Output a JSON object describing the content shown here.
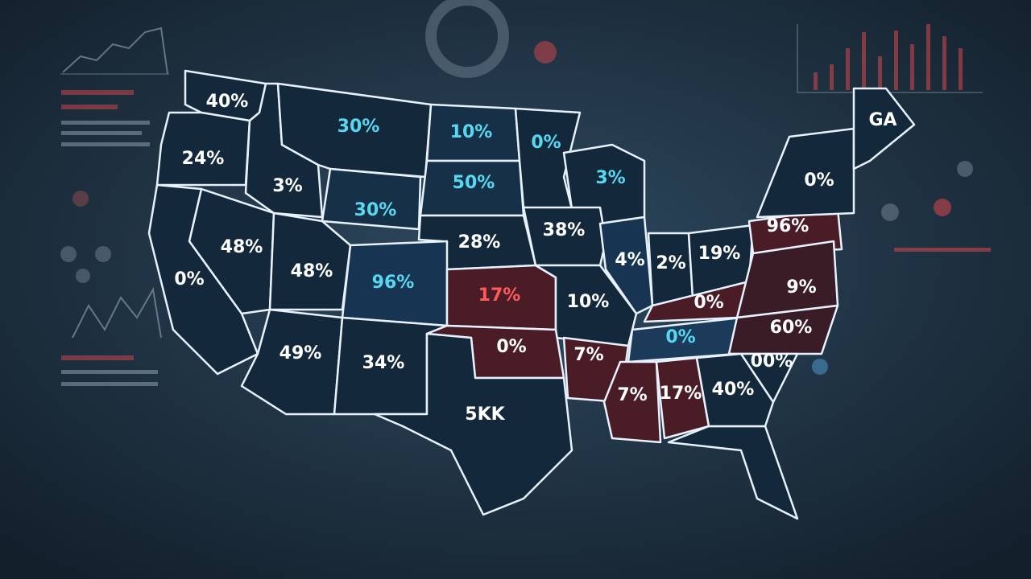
{
  "map": {
    "regions": [
      {
        "label": "40%",
        "fill": "#14283b",
        "text_color": "#ffffff"
      },
      {
        "label": "24%",
        "fill": "#14283b",
        "text_color": "#ffffff"
      },
      {
        "label": "3%",
        "fill": "#14283b",
        "text_color": "#ffffff"
      },
      {
        "label": "30%",
        "fill": "#14283b",
        "text_color": "#56d8f0"
      },
      {
        "label": "30%",
        "fill": "#163048",
        "text_color": "#56d8f0"
      },
      {
        "label": "10%",
        "fill": "#163048",
        "text_color": "#56d8f0"
      },
      {
        "label": "50%",
        "fill": "#163048",
        "text_color": "#56d8f0"
      },
      {
        "label": "0%",
        "fill": "#14283b",
        "text_color": "#56d8f0"
      },
      {
        "label": "3%",
        "fill": "#14283b",
        "text_color": "#56d8f0"
      },
      {
        "label": "28%",
        "fill": "#14283b",
        "text_color": "#ffffff"
      },
      {
        "label": "38%",
        "fill": "#14283b",
        "text_color": "#ffffff"
      },
      {
        "label": "48%",
        "fill": "#14283b",
        "text_color": "#ffffff"
      },
      {
        "label": "0%",
        "fill": "#14283b",
        "text_color": "#ffffff"
      },
      {
        "label": "48%",
        "fill": "#14283b",
        "text_color": "#ffffff"
      },
      {
        "label": "96%",
        "fill": "#173552",
        "text_color": "#56d8f0"
      },
      {
        "label": "17%",
        "fill": "#4a1c26",
        "text_color": "#ff5a5a"
      },
      {
        "label": "10%",
        "fill": "#14283b",
        "text_color": "#ffffff"
      },
      {
        "label": "4%",
        "fill": "#173552",
        "text_color": "#ffffff"
      },
      {
        "label": "2%",
        "fill": "#14283b",
        "text_color": "#ffffff"
      },
      {
        "label": "19%",
        "fill": "#14283b",
        "text_color": "#ffffff"
      },
      {
        "label": "96%",
        "fill": "#4a1c26",
        "text_color": "#ffffff"
      },
      {
        "label": "0%",
        "fill": "#14283b",
        "text_color": "#ffffff"
      },
      {
        "label": "GA",
        "fill": "#14283b",
        "text_color": "#ffffff"
      },
      {
        "label": "49%",
        "fill": "#14283b",
        "text_color": "#ffffff"
      },
      {
        "label": "34%",
        "fill": "#14283b",
        "text_color": "#ffffff"
      },
      {
        "label": "0%",
        "fill": "#4a1c26",
        "text_color": "#ffffff"
      },
      {
        "label": "5KK",
        "fill": "#14283b",
        "text_color": "#ffffff"
      },
      {
        "label": "7%",
        "fill": "#4a1c26",
        "text_color": "#ffffff"
      },
      {
        "label": "0%",
        "fill": "#4a1c26",
        "text_color": "#ffffff"
      },
      {
        "label": "0%",
        "fill": "#1c3a5a",
        "text_color": "#56d8f0"
      },
      {
        "label": "9%",
        "fill": "#3a1c26",
        "text_color": "#ffffff"
      },
      {
        "label": "60%",
        "fill": "#3a1c26",
        "text_color": "#ffffff"
      },
      {
        "label": "00%",
        "fill": "#14283b",
        "text_color": "#ffffff"
      },
      {
        "label": "7%",
        "fill": "#4a1c26",
        "text_color": "#ffffff"
      },
      {
        "label": "17%",
        "fill": "#4a1c26",
        "text_color": "#ffffff"
      },
      {
        "label": "40%",
        "fill": "#14283b",
        "text_color": "#ffffff"
      }
    ]
  }
}
